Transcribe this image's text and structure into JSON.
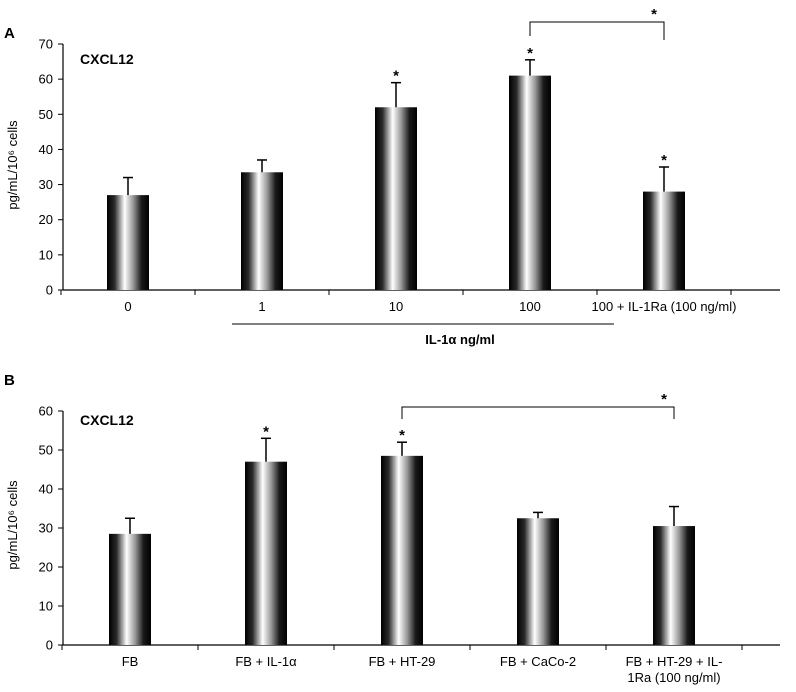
{
  "chart_data": [
    {
      "type": "bar",
      "panel": "A",
      "series_label": "CXCL12",
      "ylabel": "pg/mL/10⁶ cells",
      "ylim": [
        0,
        70
      ],
      "yticks": [
        0,
        10,
        20,
        30,
        40,
        50,
        60,
        70
      ],
      "categories": [
        "0",
        "1",
        "10",
        "100",
        "100 + IL-1Ra (100 ng/ml)"
      ],
      "values": [
        27,
        33.5,
        52,
        61,
        28
      ],
      "errors": [
        5,
        3.5,
        7,
        4.5,
        7
      ],
      "significant": [
        false,
        false,
        true,
        true,
        true
      ],
      "group_label": "IL-1α ng/ml",
      "comparison": {
        "from": 3,
        "to": 4,
        "label": "*"
      },
      "grid": false
    },
    {
      "type": "bar",
      "panel": "B",
      "series_label": "CXCL12",
      "ylabel": "pg/mL/10⁶ cells",
      "ylim": [
        0,
        60
      ],
      "yticks": [
        0,
        10,
        20,
        30,
        40,
        50,
        60
      ],
      "categories": [
        "FB",
        "FB + IL-1α",
        "FB + HT-29",
        "FB + CaCo-2",
        "FB + HT-29 + IL-1Ra (100 ng/ml)"
      ],
      "category_lines": [
        [
          "FB"
        ],
        [
          "FB + IL-1α"
        ],
        [
          "FB + HT-29"
        ],
        [
          "FB + CaCo-2"
        ],
        [
          "FB + HT-29 + IL-",
          "1Ra (100 ng/ml)"
        ]
      ],
      "values": [
        28.5,
        47,
        48.5,
        32.5,
        30.5
      ],
      "errors": [
        4,
        6,
        3.5,
        1.5,
        5
      ],
      "significant": [
        false,
        true,
        true,
        false,
        false
      ],
      "comparison": {
        "from": 2,
        "to": 4,
        "label": "*"
      },
      "grid": false
    }
  ]
}
